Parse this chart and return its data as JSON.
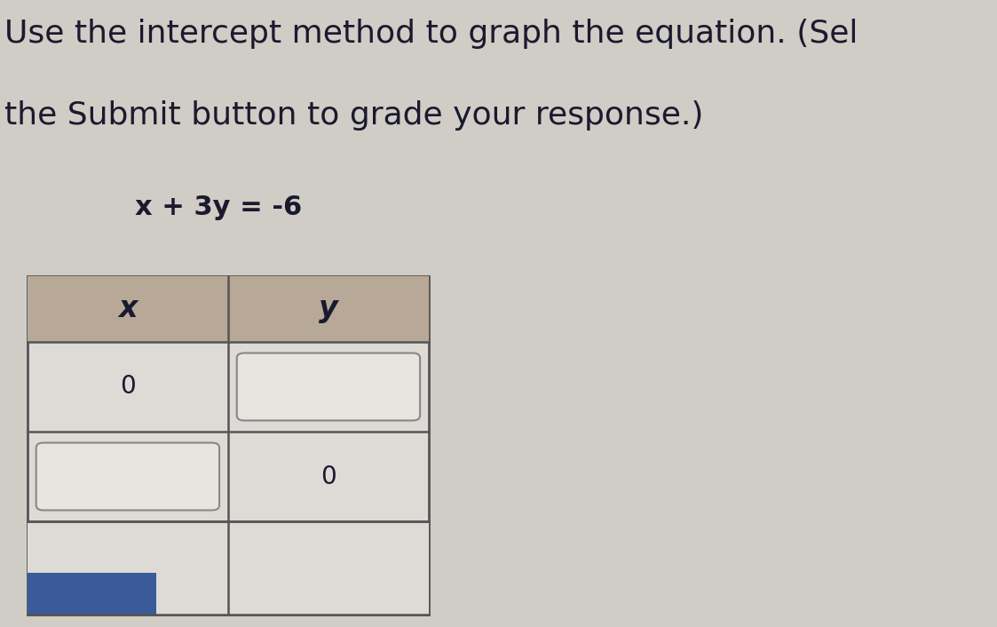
{
  "title_line1": "Use the intercept method to graph the equation. (Sel",
  "title_line2": "the Submit button to grade your response.)",
  "equation": "x + 3y = -6",
  "col_headers": [
    "x",
    "y"
  ],
  "row1_x": "0",
  "row2_y": "0",
  "bg_color": "#d8d4ce",
  "table_outer_bg": "#e8e4e0",
  "header_bg": "#b8a898",
  "cell_bg": "#dedad6",
  "box_bg": "#e8e4e0",
  "box_edge": "#888888",
  "text_color": "#1a1a2e",
  "title_fontsize": 26,
  "eq_fontsize": 22,
  "blue_color": "#3a5a9a",
  "page_bg": "#d0ccc6"
}
